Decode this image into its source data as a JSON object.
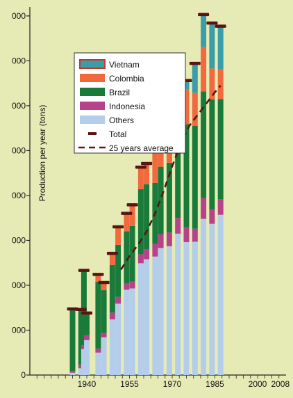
{
  "chart_data": {
    "type": "bar",
    "stacked": true,
    "ylabel": "Production per year (tons)",
    "y_tick_labels": [
      "0",
      "000",
      "000",
      "000",
      "000",
      "000",
      "000",
      "000",
      "000"
    ],
    "y_ticks": [
      0,
      1000000,
      2000000,
      3000000,
      4000000,
      5000000,
      6000000,
      7000000,
      8000000
    ],
    "ylim": [
      0,
      8200000
    ],
    "x_tick_labels": [
      "1940",
      "1955",
      "1970",
      "1985",
      "2000",
      "2008"
    ],
    "x_tick_values": [
      1940,
      1955,
      1970,
      1985,
      2000,
      2008
    ],
    "xlim": [
      1920,
      2010
    ],
    "categories": [
      1935,
      1938,
      1939,
      1940,
      1944,
      1946,
      1949,
      1951,
      1954,
      1956,
      1959,
      1961,
      1964,
      1966,
      1969,
      1972,
      1975,
      1978,
      1981,
      1984,
      1987
    ],
    "series": [
      {
        "name": "Others",
        "color": "#b4cdea",
        "values": [
          50000,
          150000,
          580000,
          780000,
          500000,
          840000,
          1240000,
          1590000,
          1900000,
          1930000,
          2490000,
          2580000,
          2640000,
          2830000,
          2870000,
          3150000,
          2960000,
          2970000,
          3480000,
          3370000,
          3570000
        ]
      },
      {
        "name": "Indonesia",
        "color": "#b5428a",
        "values": [
          40000,
          80000,
          90000,
          110000,
          90000,
          100000,
          150000,
          150000,
          140000,
          150000,
          200000,
          220000,
          290000,
          310000,
          310000,
          350000,
          330000,
          290000,
          460000,
          320000,
          350000
        ]
      },
      {
        "name": "Brazil",
        "color": "#1a7a3a",
        "values": [
          1370000,
          1220000,
          1650000,
          480000,
          1490000,
          950000,
          1060000,
          1160000,
          1160000,
          1240000,
          1450000,
          1450000,
          1350000,
          1500000,
          1550000,
          1980000,
          2300000,
          2290000,
          2380000,
          2450000,
          2230000
        ]
      },
      {
        "name": "Colombia",
        "color": "#f06a3e",
        "values": [
          0,
          0,
          0,
          0,
          150000,
          160000,
          250000,
          390000,
          390000,
          460000,
          480000,
          450000,
          850000,
          810000,
          810000,
          740000,
          780000,
          740000,
          990000,
          690000,
          660000
        ]
      },
      {
        "name": "Vietnam",
        "color": "#3a9ea8",
        "values": [
          0,
          0,
          0,
          0,
          0,
          0,
          0,
          0,
          0,
          0,
          0,
          0,
          0,
          0,
          0,
          0,
          180000,
          640000,
          710000,
          1000000,
          950000
        ]
      }
    ],
    "total_series": {
      "name": "Total",
      "color": "#5a1414"
    },
    "average_series": {
      "name": "25 years average",
      "color": "#5a1414",
      "x": [
        1952,
        1955,
        1958,
        1961,
        1964,
        1967,
        1970,
        1973,
        1976,
        1979,
        1982,
        1985,
        1987
      ],
      "values": [
        2350000,
        2650000,
        2900000,
        3200000,
        3600000,
        4100000,
        4650000,
        5150000,
        5550000,
        5800000,
        6050000,
        6300000,
        6450000
      ]
    },
    "legend": {
      "position": "top-left",
      "entries": [
        "Vietnam",
        "Colombia",
        "Brazil",
        "Indonesia",
        "Others",
        "Total",
        "25 years average"
      ]
    },
    "grid": false
  }
}
